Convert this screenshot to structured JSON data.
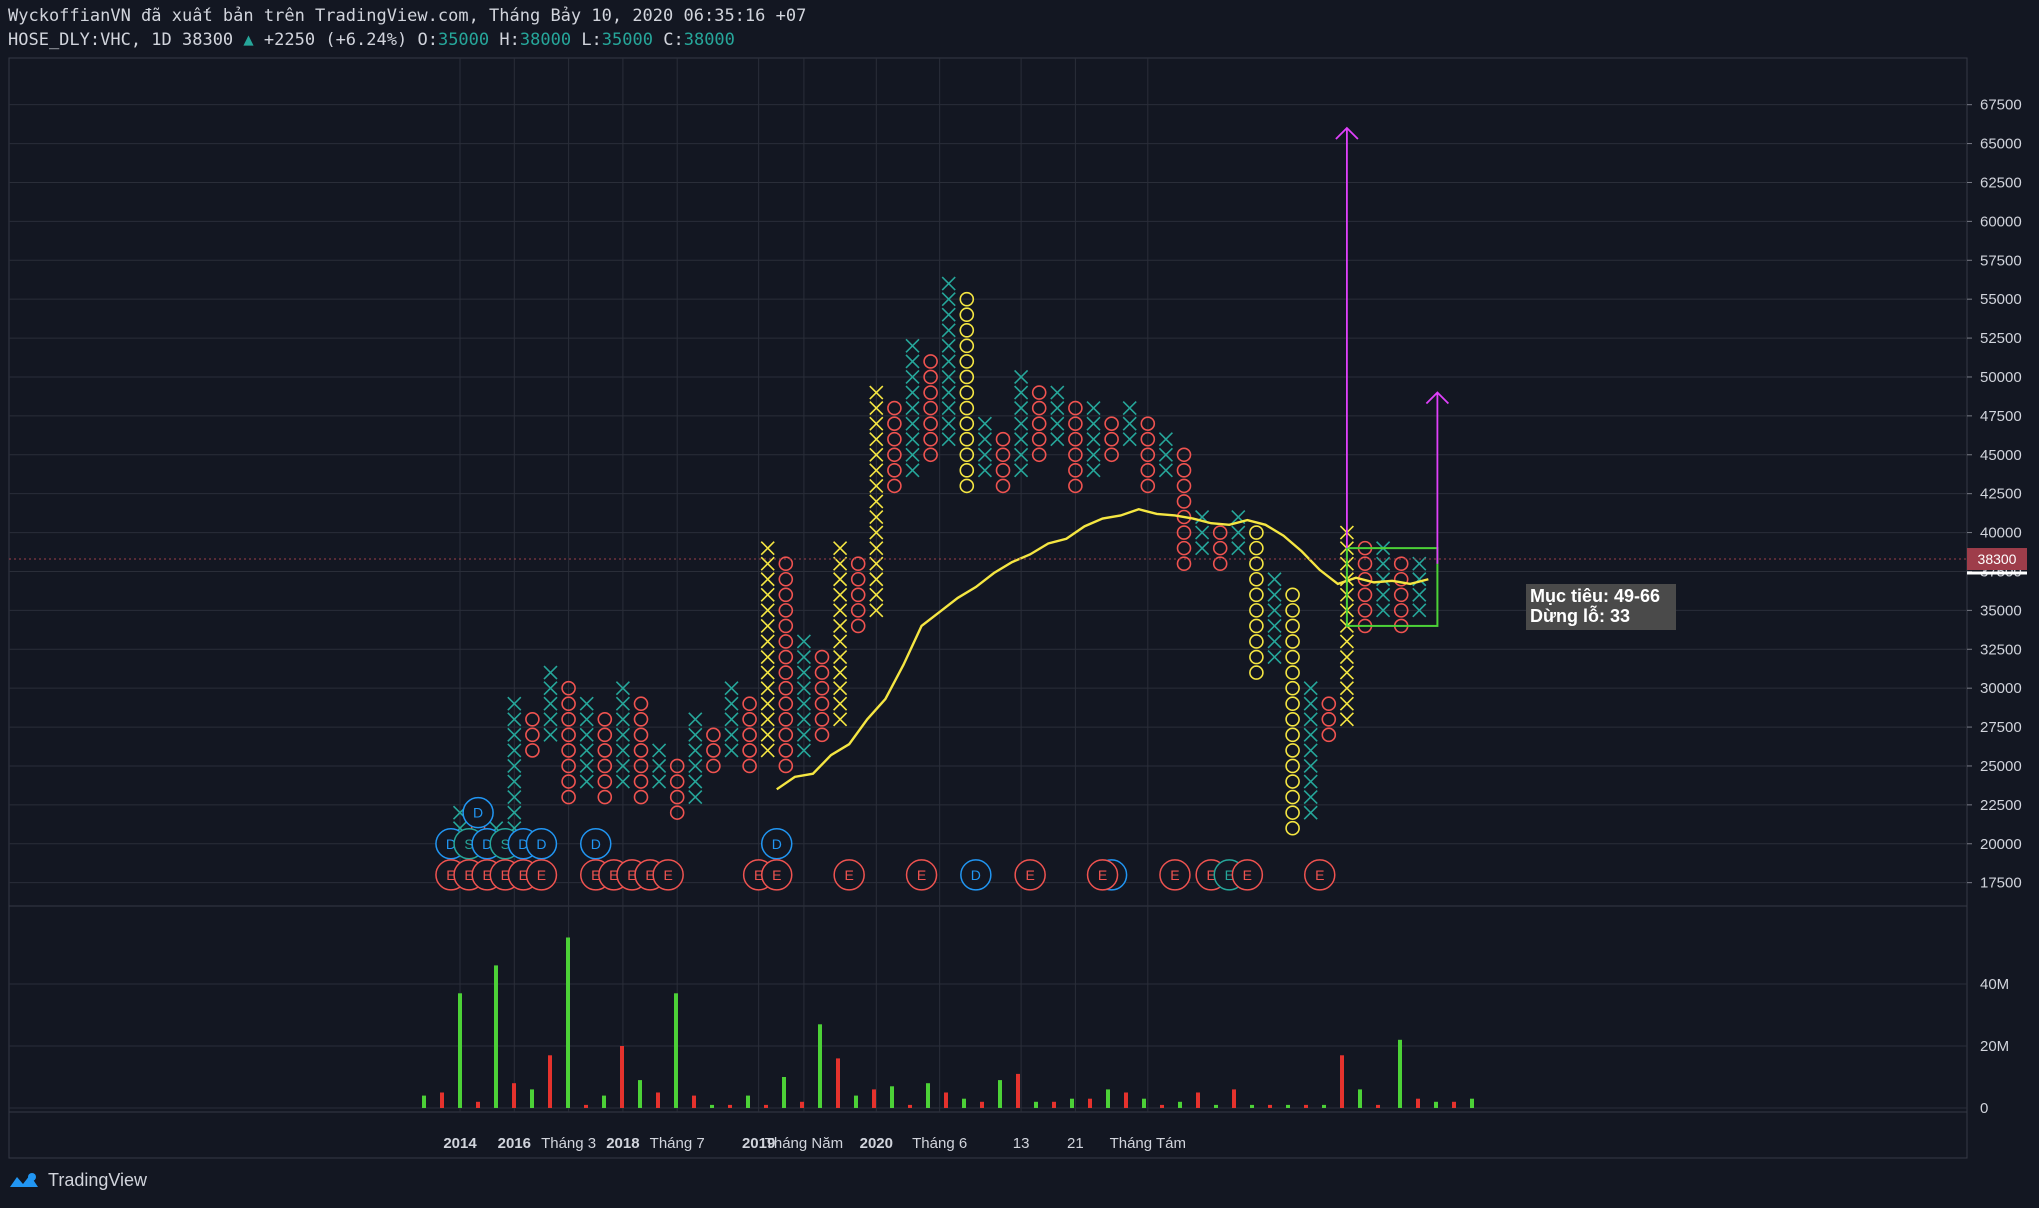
{
  "header": {
    "line1": "WyckoffianVN đã xuất bản trên TradingView.com, Tháng Bảy 10, 2020 06:35:16 +07",
    "symbol": "HOSE_DLY:VHC, 1D 38300",
    "change": "+2250 (+6.24%)",
    "o_label": "O:",
    "o": "35000",
    "h_label": "H:",
    "h": "38000",
    "l_label": "L:",
    "l": "35000",
    "c_label": "C:",
    "c": "38000"
  },
  "annotation": {
    "target": "Mục tiêu: 49-66",
    "stop": "Dừng lỗ: 33"
  },
  "footer": {
    "brand": "TradingView"
  },
  "colors": {
    "background": "#131722",
    "x_teal": "#26a69a",
    "x_yellow": "#f5e642",
    "o_red": "#ef5350",
    "o_yellow": "#f5e642",
    "ma": "#f5e642",
    "arrow": "#e040fb",
    "vol_up": "#4cd137",
    "vol_down": "#e5322d",
    "event_blue": "#2196f3",
    "event_red": "#ef5350",
    "event_green": "#26a69a"
  },
  "chart_data": {
    "type": "point_and_figure",
    "price_axis": {
      "ticks": [
        17500,
        20000,
        22500,
        25000,
        27500,
        30000,
        32500,
        35000,
        37500,
        40000,
        42500,
        45000,
        47500,
        50000,
        52500,
        55000,
        57500,
        60000,
        62500,
        65000,
        67500
      ],
      "last_price_label": "38300",
      "range": [
        16000,
        70500
      ]
    },
    "volume_axis": {
      "ticks": [
        "0",
        "20M",
        "40M"
      ],
      "max": 60
    },
    "x_axis_labels": [
      {
        "text": "2014",
        "bold": true,
        "col": 0
      },
      {
        "text": "2016",
        "bold": true,
        "col": 3
      },
      {
        "text": "Tháng 3",
        "bold": false,
        "col": 6
      },
      {
        "text": "2018",
        "bold": true,
        "col": 9
      },
      {
        "text": "Tháng 7",
        "bold": false,
        "col": 12
      },
      {
        "text": "2019",
        "bold": true,
        "col": 16.5
      },
      {
        "text": "Tháng Năm",
        "bold": false,
        "col": 19
      },
      {
        "text": "2020",
        "bold": true,
        "col": 23
      },
      {
        "text": "Tháng 6",
        "bold": false,
        "col": 26.5
      },
      {
        "text": "13",
        "bold": false,
        "col": 31
      },
      {
        "text": "21",
        "bold": false,
        "col": 34
      },
      {
        "text": "Tháng Tám",
        "bold": false,
        "col": 38
      }
    ],
    "columns": [
      {
        "t": "X",
        "lo": 21000,
        "hi": 22000,
        "c": "teal"
      },
      {
        "t": "O",
        "lo": 20000,
        "hi": 21000,
        "c": "red"
      },
      {
        "t": "X",
        "lo": 20000,
        "hi": 21000,
        "c": "teal"
      },
      {
        "t": "X",
        "lo": 21000,
        "hi": 29000,
        "c": "teal"
      },
      {
        "t": "O",
        "lo": 26000,
        "hi": 28000,
        "c": "red"
      },
      {
        "t": "X",
        "lo": 27000,
        "hi": 31000,
        "c": "teal"
      },
      {
        "t": "O",
        "lo": 23000,
        "hi": 30000,
        "c": "red"
      },
      {
        "t": "X",
        "lo": 24000,
        "hi": 29000,
        "c": "teal"
      },
      {
        "t": "O",
        "lo": 23000,
        "hi": 28000,
        "c": "red"
      },
      {
        "t": "X",
        "lo": 24000,
        "hi": 30000,
        "c": "teal"
      },
      {
        "t": "O",
        "lo": 23000,
        "hi": 29000,
        "c": "red"
      },
      {
        "t": "X",
        "lo": 24000,
        "hi": 26000,
        "c": "teal"
      },
      {
        "t": "O",
        "lo": 22000,
        "hi": 25000,
        "c": "red"
      },
      {
        "t": "X",
        "lo": 23000,
        "hi": 28000,
        "c": "teal"
      },
      {
        "t": "O",
        "lo": 25000,
        "hi": 27000,
        "c": "red"
      },
      {
        "t": "X",
        "lo": 26000,
        "hi": 30000,
        "c": "teal"
      },
      {
        "t": "O",
        "lo": 25000,
        "hi": 29000,
        "c": "red"
      },
      {
        "t": "X",
        "lo": 26000,
        "hi": 39000,
        "c": "yellow"
      },
      {
        "t": "O",
        "lo": 25000,
        "hi": 38000,
        "c": "red"
      },
      {
        "t": "X",
        "lo": 26000,
        "hi": 33000,
        "c": "teal"
      },
      {
        "t": "O",
        "lo": 27000,
        "hi": 32000,
        "c": "red"
      },
      {
        "t": "X",
        "lo": 28000,
        "hi": 39000,
        "c": "yellow"
      },
      {
        "t": "O",
        "lo": 34000,
        "hi": 38000,
        "c": "red"
      },
      {
        "t": "X",
        "lo": 35000,
        "hi": 49000,
        "c": "yellow"
      },
      {
        "t": "O",
        "lo": 43000,
        "hi": 48000,
        "c": "red"
      },
      {
        "t": "X",
        "lo": 44000,
        "hi": 52000,
        "c": "teal"
      },
      {
        "t": "O",
        "lo": 45000,
        "hi": 51000,
        "c": "red"
      },
      {
        "t": "X",
        "lo": 46000,
        "hi": 56000,
        "c": "teal"
      },
      {
        "t": "O",
        "lo": 43000,
        "hi": 55000,
        "c": "yellow"
      },
      {
        "t": "X",
        "lo": 44000,
        "hi": 47000,
        "c": "teal"
      },
      {
        "t": "O",
        "lo": 43000,
        "hi": 46000,
        "c": "red"
      },
      {
        "t": "X",
        "lo": 44000,
        "hi": 50000,
        "c": "teal"
      },
      {
        "t": "O",
        "lo": 45000,
        "hi": 49000,
        "c": "red"
      },
      {
        "t": "X",
        "lo": 46000,
        "hi": 49000,
        "c": "teal"
      },
      {
        "t": "O",
        "lo": 43000,
        "hi": 48000,
        "c": "red"
      },
      {
        "t": "X",
        "lo": 44000,
        "hi": 48000,
        "c": "teal"
      },
      {
        "t": "O",
        "lo": 45000,
        "hi": 47000,
        "c": "red"
      },
      {
        "t": "X",
        "lo": 46000,
        "hi": 48000,
        "c": "teal"
      },
      {
        "t": "O",
        "lo": 43000,
        "hi": 47000,
        "c": "red"
      },
      {
        "t": "X",
        "lo": 44000,
        "hi": 46000,
        "c": "teal"
      },
      {
        "t": "O",
        "lo": 38000,
        "hi": 45000,
        "c": "red"
      },
      {
        "t": "X",
        "lo": 39000,
        "hi": 41000,
        "c": "teal"
      },
      {
        "t": "O",
        "lo": 38000,
        "hi": 40000,
        "c": "red"
      },
      {
        "t": "X",
        "lo": 39000,
        "hi": 41000,
        "c": "teal"
      },
      {
        "t": "O",
        "lo": 31000,
        "hi": 40000,
        "c": "yellow"
      },
      {
        "t": "X",
        "lo": 32000,
        "hi": 37000,
        "c": "teal"
      },
      {
        "t": "O",
        "lo": 21000,
        "hi": 36000,
        "c": "yellow"
      },
      {
        "t": "X",
        "lo": 22000,
        "hi": 30000,
        "c": "teal"
      },
      {
        "t": "O",
        "lo": 27000,
        "hi": 29000,
        "c": "red"
      },
      {
        "t": "X",
        "lo": 28000,
        "hi": 40000,
        "c": "yellow"
      },
      {
        "t": "O",
        "lo": 34000,
        "hi": 39000,
        "c": "red"
      },
      {
        "t": "X",
        "lo": 35000,
        "hi": 39000,
        "c": "teal"
      },
      {
        "t": "O",
        "lo": 34000,
        "hi": 38000,
        "c": "red"
      },
      {
        "t": "X",
        "lo": 35000,
        "hi": 38000,
        "c": "teal"
      }
    ],
    "moving_average": [
      {
        "col": 18,
        "v": 23500
      },
      {
        "col": 19,
        "v": 24300
      },
      {
        "col": 20,
        "v": 24500
      },
      {
        "col": 21,
        "v": 25700
      },
      {
        "col": 22,
        "v": 26400
      },
      {
        "col": 23,
        "v": 28000
      },
      {
        "col": 24,
        "v": 29300
      },
      {
        "col": 25,
        "v": 31500
      },
      {
        "col": 26,
        "v": 34000
      },
      {
        "col": 27,
        "v": 34900
      },
      {
        "col": 28,
        "v": 35800
      },
      {
        "col": 29,
        "v": 36500
      },
      {
        "col": 30,
        "v": 37400
      },
      {
        "col": 31,
        "v": 38100
      },
      {
        "col": 32,
        "v": 38600
      },
      {
        "col": 33,
        "v": 39300
      },
      {
        "col": 34,
        "v": 39600
      },
      {
        "col": 35,
        "v": 40400
      },
      {
        "col": 36,
        "v": 40900
      },
      {
        "col": 37,
        "v": 41100
      },
      {
        "col": 38,
        "v": 41500
      },
      {
        "col": 39,
        "v": 41200
      },
      {
        "col": 40,
        "v": 41100
      },
      {
        "col": 41,
        "v": 40900
      },
      {
        "col": 42,
        "v": 40600
      },
      {
        "col": 43,
        "v": 40500
      },
      {
        "col": 44,
        "v": 40800
      },
      {
        "col": 45,
        "v": 40500
      },
      {
        "col": 46,
        "v": 39800
      },
      {
        "col": 47,
        "v": 38800
      },
      {
        "col": 48,
        "v": 37600
      },
      {
        "col": 49,
        "v": 36700
      },
      {
        "col": 50,
        "v": 37100
      },
      {
        "col": 51,
        "v": 36800
      },
      {
        "col": 52,
        "v": 36900
      },
      {
        "col": 53,
        "v": 36700
      },
      {
        "col": 54,
        "v": 37000
      }
    ],
    "trading_range_box": {
      "col_start": 49,
      "col_end": 54,
      "lo": 34000,
      "hi": 39000
    },
    "targets": [
      {
        "col": 49,
        "from": 39000,
        "to": 66000
      },
      {
        "col": 54,
        "from": 38000,
        "to": 49000
      }
    ],
    "event_markers": [
      {
        "col": -0.5,
        "v": 20000,
        "txt": "D",
        "c": "blue"
      },
      {
        "col": 0.5,
        "v": 20000,
        "txt": "S",
        "c": "green"
      },
      {
        "col": 1,
        "v": 22000,
        "txt": "D",
        "c": "blue"
      },
      {
        "col": 1.5,
        "v": 20000,
        "txt": "D",
        "c": "blue"
      },
      {
        "col": 2.5,
        "v": 20000,
        "txt": "S",
        "c": "green"
      },
      {
        "col": 3.5,
        "v": 20000,
        "txt": "D",
        "c": "blue"
      },
      {
        "col": 4.5,
        "v": 20000,
        "txt": "D",
        "c": "blue"
      },
      {
        "col": 7.5,
        "v": 20000,
        "txt": "D",
        "c": "blue"
      },
      {
        "col": 17.5,
        "v": 20000,
        "txt": "D",
        "c": "blue"
      },
      {
        "col": -0.5,
        "v": 18000,
        "txt": "E",
        "c": "red"
      },
      {
        "col": 0.5,
        "v": 18000,
        "txt": "E",
        "c": "red"
      },
      {
        "col": 1.5,
        "v": 18000,
        "txt": "E",
        "c": "red"
      },
      {
        "col": 2.5,
        "v": 18000,
        "txt": "E",
        "c": "red"
      },
      {
        "col": 3.5,
        "v": 18000,
        "txt": "E",
        "c": "red"
      },
      {
        "col": 4.5,
        "v": 18000,
        "txt": "E",
        "c": "red"
      },
      {
        "col": 7.5,
        "v": 18000,
        "txt": "E",
        "c": "red"
      },
      {
        "col": 8.5,
        "v": 18000,
        "txt": "E",
        "c": "red"
      },
      {
        "col": 9.5,
        "v": 18000,
        "txt": "E",
        "c": "red"
      },
      {
        "col": 10.5,
        "v": 18000,
        "txt": "E",
        "c": "red"
      },
      {
        "col": 11.5,
        "v": 18000,
        "txt": "E",
        "c": "red"
      },
      {
        "col": 16.5,
        "v": 18000,
        "txt": "E",
        "c": "red"
      },
      {
        "col": 17.5,
        "v": 18000,
        "txt": "E",
        "c": "red"
      },
      {
        "col": 21.5,
        "v": 18000,
        "txt": "E",
        "c": "red"
      },
      {
        "col": 25.5,
        "v": 18000,
        "txt": "E",
        "c": "red"
      },
      {
        "col": 28.5,
        "v": 18000,
        "txt": "D",
        "c": "blue"
      },
      {
        "col": 31.5,
        "v": 18000,
        "txt": "E",
        "c": "red"
      },
      {
        "col": 36,
        "v": 18000,
        "txt": "D",
        "c": "blue"
      },
      {
        "col": 35.5,
        "v": 18000,
        "txt": "E",
        "c": "red"
      },
      {
        "col": 39.5,
        "v": 18000,
        "txt": "E",
        "c": "red"
      },
      {
        "col": 41.5,
        "v": 18000,
        "txt": "E",
        "c": "red"
      },
      {
        "col": 42.5,
        "v": 18000,
        "txt": "E",
        "c": "green"
      },
      {
        "col": 43.5,
        "v": 18000,
        "txt": "E",
        "c": "red"
      },
      {
        "col": 47.5,
        "v": 18000,
        "txt": "E",
        "c": "red"
      }
    ],
    "volume": [
      {
        "x": 424,
        "v": 4,
        "up": true
      },
      {
        "x": 442,
        "v": 5,
        "up": false
      },
      {
        "x": 460,
        "v": 37,
        "up": true
      },
      {
        "x": 478,
        "v": 2,
        "up": false
      },
      {
        "x": 496,
        "v": 46,
        "up": true
      },
      {
        "x": 514,
        "v": 8,
        "up": false
      },
      {
        "x": 532,
        "v": 6,
        "up": true
      },
      {
        "x": 550,
        "v": 17,
        "up": false
      },
      {
        "x": 568,
        "v": 55,
        "up": true
      },
      {
        "x": 586,
        "v": 1,
        "up": false
      },
      {
        "x": 604,
        "v": 4,
        "up": true
      },
      {
        "x": 622,
        "v": 20,
        "up": false
      },
      {
        "x": 640,
        "v": 9,
        "up": true
      },
      {
        "x": 658,
        "v": 5,
        "up": false
      },
      {
        "x": 676,
        "v": 37,
        "up": true
      },
      {
        "x": 694,
        "v": 4,
        "up": false
      },
      {
        "x": 712,
        "v": 1,
        "up": true
      },
      {
        "x": 730,
        "v": 1,
        "up": false
      },
      {
        "x": 748,
        "v": 4,
        "up": true
      },
      {
        "x": 766,
        "v": 1,
        "up": false
      },
      {
        "x": 784,
        "v": 10,
        "up": true
      },
      {
        "x": 802,
        "v": 2,
        "up": false
      },
      {
        "x": 820,
        "v": 27,
        "up": true
      },
      {
        "x": 838,
        "v": 16,
        "up": false
      },
      {
        "x": 856,
        "v": 4,
        "up": true
      },
      {
        "x": 874,
        "v": 6,
        "up": false
      },
      {
        "x": 892,
        "v": 7,
        "up": true
      },
      {
        "x": 910,
        "v": 1,
        "up": false
      },
      {
        "x": 928,
        "v": 8,
        "up": true
      },
      {
        "x": 946,
        "v": 5,
        "up": false
      },
      {
        "x": 964,
        "v": 3,
        "up": true
      },
      {
        "x": 982,
        "v": 2,
        "up": false
      },
      {
        "x": 1000,
        "v": 9,
        "up": true
      },
      {
        "x": 1018,
        "v": 11,
        "up": false
      },
      {
        "x": 1036,
        "v": 2,
        "up": true
      },
      {
        "x": 1054,
        "v": 2,
        "up": false
      },
      {
        "x": 1072,
        "v": 3,
        "up": true
      },
      {
        "x": 1090,
        "v": 3,
        "up": false
      },
      {
        "x": 1108,
        "v": 6,
        "up": true
      },
      {
        "x": 1126,
        "v": 5,
        "up": false
      },
      {
        "x": 1144,
        "v": 3,
        "up": true
      },
      {
        "x": 1162,
        "v": 1,
        "up": false
      },
      {
        "x": 1180,
        "v": 2,
        "up": true
      },
      {
        "x": 1198,
        "v": 5,
        "up": false
      },
      {
        "x": 1216,
        "v": 1,
        "up": true
      },
      {
        "x": 1234,
        "v": 6,
        "up": false
      },
      {
        "x": 1252,
        "v": 1,
        "up": true
      },
      {
        "x": 1270,
        "v": 1,
        "up": false
      },
      {
        "x": 1288,
        "v": 1,
        "up": true
      },
      {
        "x": 1306,
        "v": 1,
        "up": false
      },
      {
        "x": 1324,
        "v": 1,
        "up": true
      },
      {
        "x": 1342,
        "v": 17,
        "up": false
      },
      {
        "x": 1360,
        "v": 6,
        "up": true
      },
      {
        "x": 1378,
        "v": 1,
        "up": false
      },
      {
        "x": 1400,
        "v": 22,
        "up": true
      },
      {
        "x": 1418,
        "v": 3,
        "up": false
      },
      {
        "x": 1436,
        "v": 2,
        "up": true
      },
      {
        "x": 1454,
        "v": 2,
        "up": false
      },
      {
        "x": 1472,
        "v": 3,
        "up": true
      }
    ]
  }
}
